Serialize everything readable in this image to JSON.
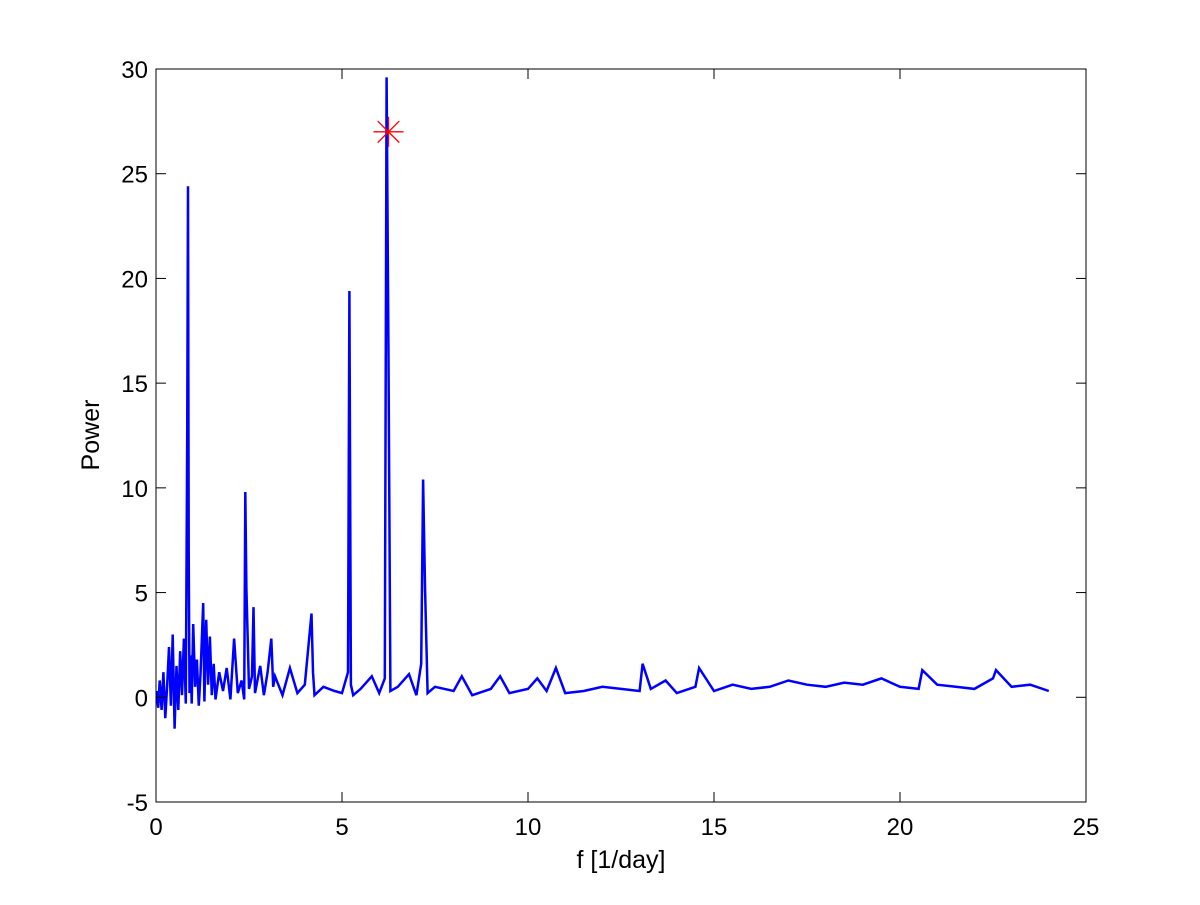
{
  "chart_data": {
    "type": "line",
    "title": "",
    "xlabel": "f [1/day]",
    "ylabel": "Power",
    "xlim": [
      0,
      25
    ],
    "ylim": [
      -5,
      30
    ],
    "x_ticks": [
      0,
      5,
      10,
      15,
      20,
      25
    ],
    "y_ticks": [
      -5,
      0,
      5,
      10,
      15,
      20,
      25,
      30
    ],
    "x_tick_labels": [
      "0",
      "5",
      "10",
      "15",
      "20",
      "25"
    ],
    "y_tick_labels": [
      "-5",
      "0",
      "5",
      "10",
      "15",
      "20",
      "25",
      "30"
    ],
    "grid": false,
    "legend": "none",
    "series": [
      {
        "color": "#0000ff",
        "x": [
          0.02,
          0.06,
          0.1,
          0.15,
          0.2,
          0.25,
          0.3,
          0.35,
          0.4,
          0.45,
          0.5,
          0.55,
          0.6,
          0.65,
          0.7,
          0.75,
          0.8,
          0.84,
          0.86,
          0.88,
          0.9,
          0.93,
          0.96,
          1.0,
          1.05,
          1.1,
          1.15,
          1.2,
          1.27,
          1.3,
          1.35,
          1.4,
          1.45,
          1.5,
          1.55,
          1.6,
          1.7,
          1.8,
          1.9,
          2.0,
          2.1,
          2.2,
          2.3,
          2.37,
          2.4,
          2.43,
          2.5,
          2.58,
          2.62,
          2.66,
          2.8,
          2.9,
          3.0,
          3.1,
          3.15,
          3.2,
          3.4,
          3.6,
          3.8,
          4.0,
          4.18,
          4.22,
          4.26,
          4.5,
          4.8,
          5.0,
          5.16,
          5.2,
          5.24,
          5.3,
          5.5,
          5.8,
          6.0,
          6.15,
          6.2,
          6.25,
          6.3,
          6.5,
          6.8,
          7.0,
          7.13,
          7.18,
          7.23,
          7.3,
          7.5,
          8.0,
          8.22,
          8.5,
          9.0,
          9.25,
          9.5,
          10.0,
          10.25,
          10.5,
          10.75,
          11.0,
          11.5,
          12.0,
          12.5,
          13.0,
          13.08,
          13.3,
          13.7,
          14.0,
          14.5,
          14.6,
          15.0,
          15.5,
          16.0,
          16.5,
          17.0,
          17.5,
          18.0,
          18.5,
          19.0,
          19.5,
          20.0,
          20.5,
          20.6,
          21.0,
          21.5,
          22.0,
          22.5,
          22.58,
          23.0,
          23.5,
          24.0
        ],
        "y": [
          0.3,
          -0.5,
          0.8,
          -0.6,
          1.2,
          -1.0,
          0.6,
          2.4,
          -0.4,
          3.0,
          -1.5,
          1.5,
          -0.6,
          2.2,
          0.1,
          2.8,
          -0.3,
          12.4,
          24.4,
          7.0,
          0.2,
          2.0,
          -0.3,
          3.5,
          0.5,
          1.8,
          -0.4,
          1.2,
          4.5,
          -0.2,
          3.7,
          0.6,
          2.9,
          0.1,
          1.6,
          -0.1,
          1.2,
          0.3,
          1.4,
          -0.1,
          2.8,
          0.2,
          0.8,
          -0.1,
          9.8,
          5.2,
          0.4,
          1.0,
          4.3,
          0.2,
          1.5,
          0.1,
          1.2,
          2.8,
          0.5,
          1.0,
          0.1,
          1.4,
          0.2,
          0.6,
          4.0,
          1.2,
          0.1,
          0.5,
          0.3,
          0.2,
          1.2,
          19.4,
          0.6,
          0.1,
          0.4,
          1.0,
          0.2,
          0.9,
          29.6,
          16.2,
          0.3,
          0.5,
          1.1,
          0.1,
          1.6,
          10.4,
          5.3,
          0.2,
          0.5,
          0.3,
          1.0,
          0.1,
          0.4,
          1.0,
          0.2,
          0.4,
          0.9,
          0.3,
          1.4,
          0.2,
          0.3,
          0.5,
          0.4,
          0.3,
          1.6,
          0.4,
          0.8,
          0.2,
          0.5,
          1.4,
          0.3,
          0.6,
          0.4,
          0.5,
          0.8,
          0.6,
          0.5,
          0.7,
          0.6,
          0.9,
          0.5,
          0.4,
          1.3,
          0.6,
          0.5,
          0.4,
          0.9,
          1.3,
          0.5,
          0.6,
          0.3
        ]
      }
    ],
    "marker": {
      "x": 6.25,
      "y": 27.0,
      "symbol": "asterisk",
      "color": "#ff0000"
    }
  }
}
